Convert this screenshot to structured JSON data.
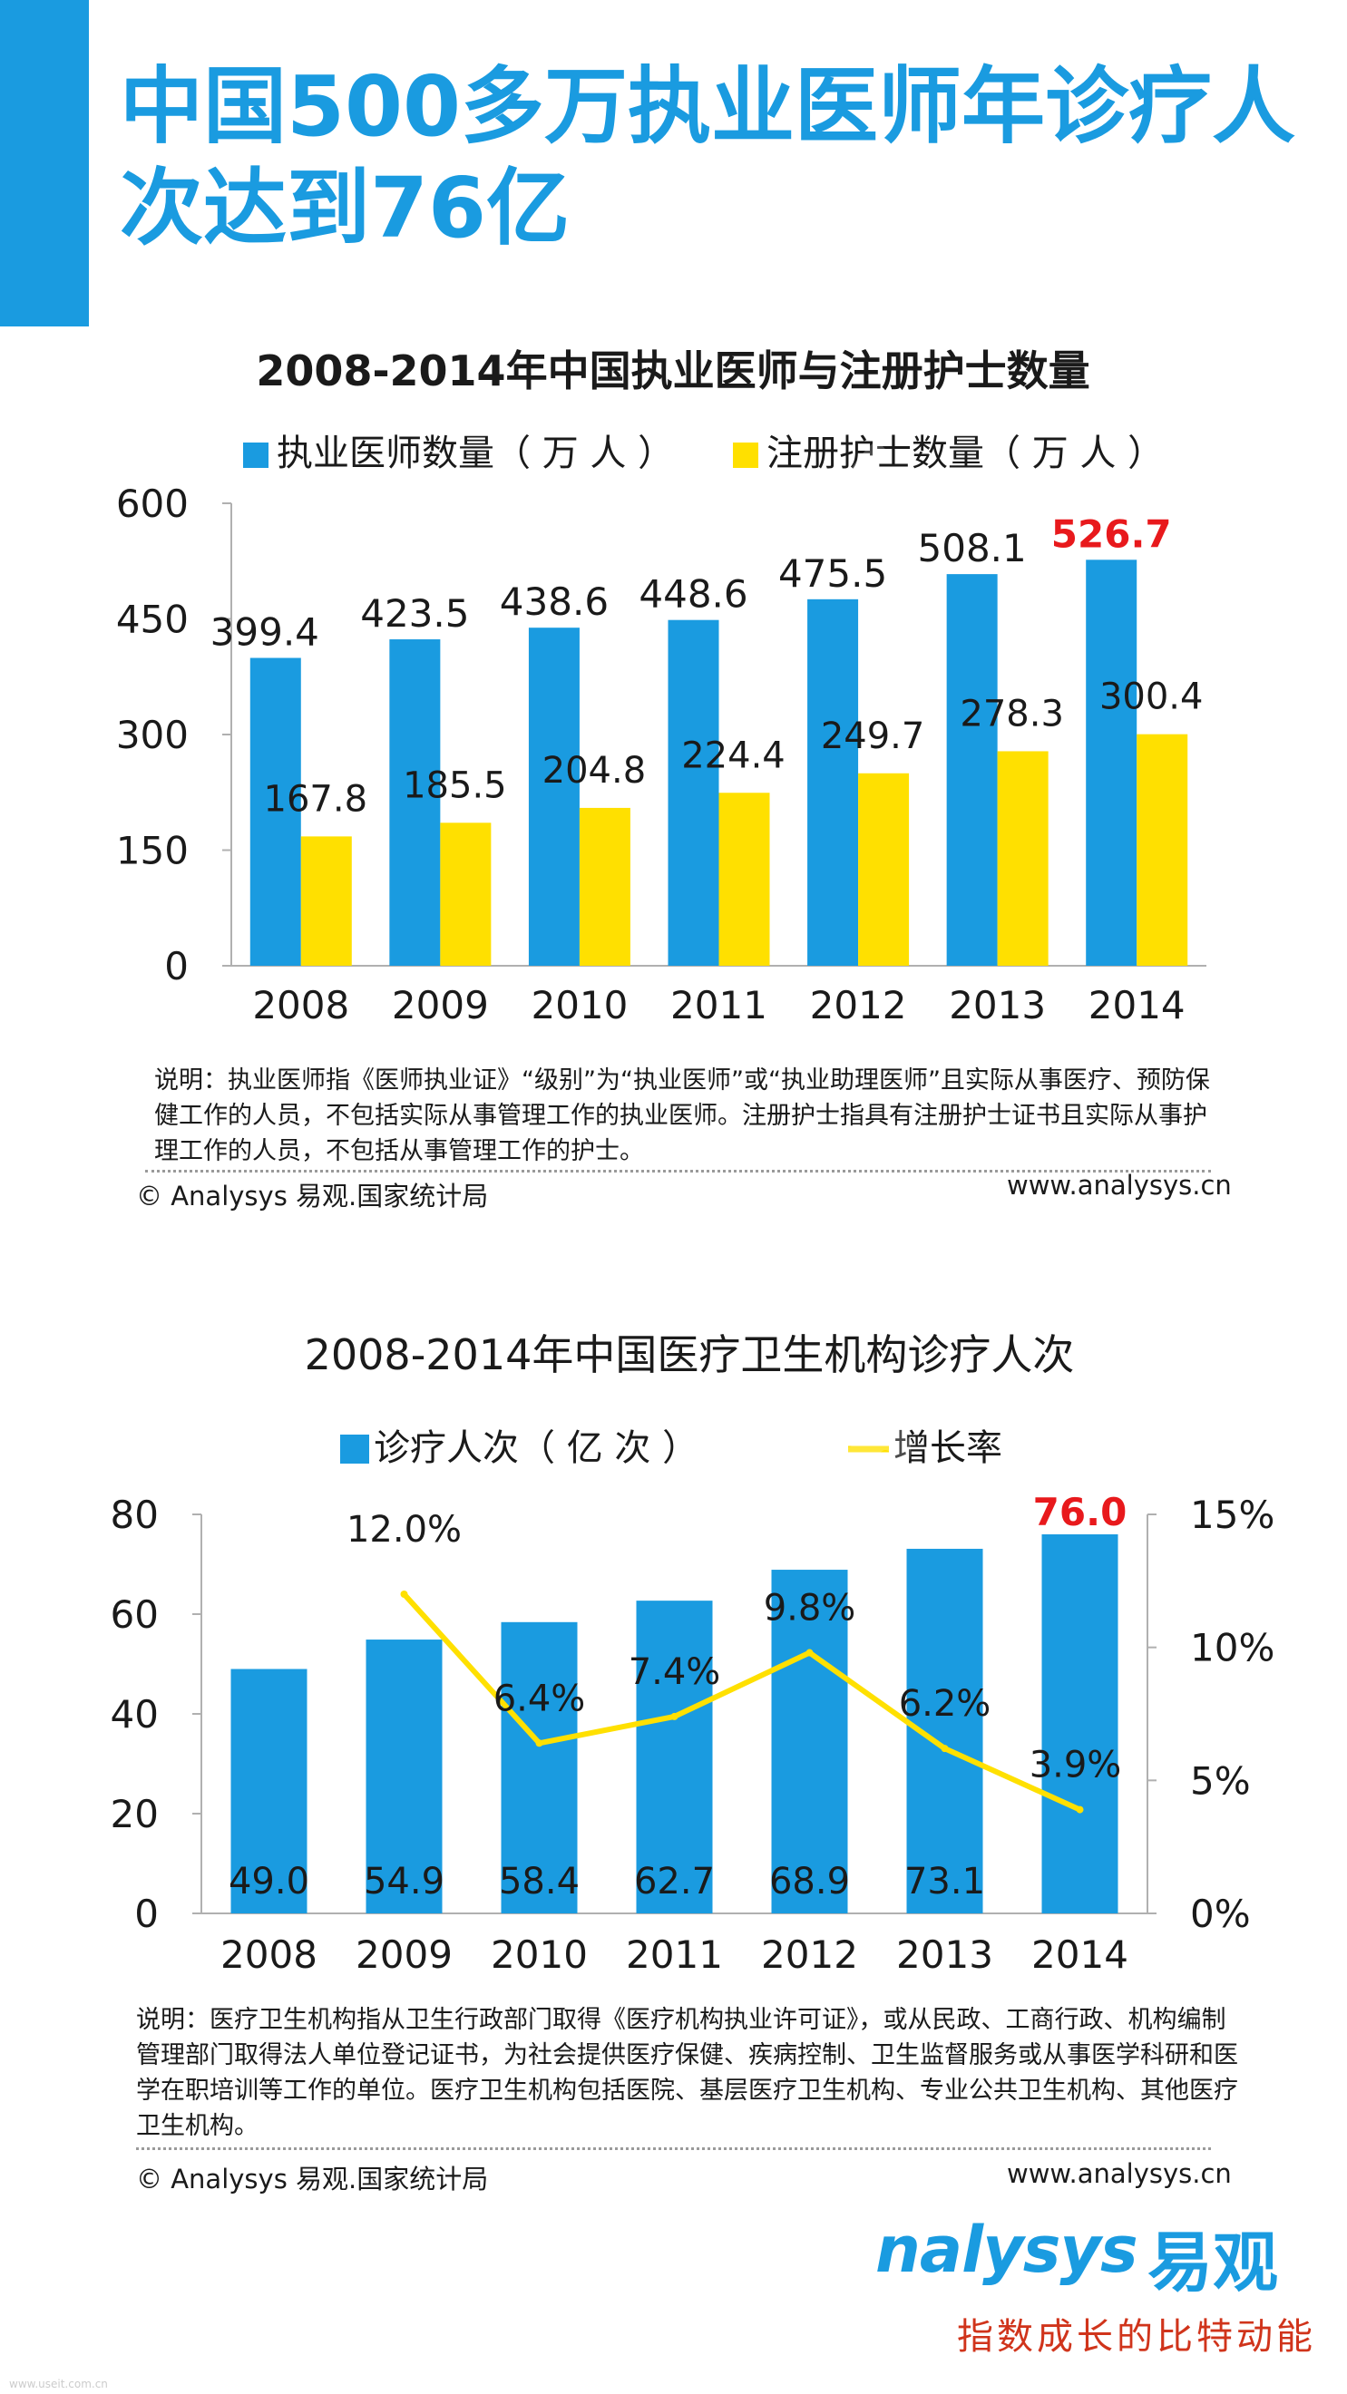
{
  "page_title": "中国500多万执业医师年诊疗人次达到76亿",
  "brand": {
    "name": "nalysys",
    "name_cn": "易观",
    "slogan": "指数成长的比特动能"
  },
  "corner_text": "www.useit.com.cn",
  "colors": {
    "blue": "#1a9be0",
    "yellow": "#ffe000",
    "highlight": "#e8191c"
  },
  "watermark": "Analysys",
  "chart_data": [
    {
      "type": "bar",
      "title": "2008-2014年中国执业医师与注册护士数量",
      "categories": [
        "2008",
        "2009",
        "2010",
        "2011",
        "2012",
        "2013",
        "2014"
      ],
      "series": [
        {
          "name": "执业医师数量（万人）",
          "legend": "执业医师数量（ 万 人 ）",
          "color": "#1a9be0",
          "values": [
            399.4,
            423.5,
            438.6,
            448.6,
            475.5,
            508.1,
            526.7
          ],
          "labels": [
            "399.4",
            "423.5",
            "438.6",
            "448.6",
            "475.5",
            "508.1",
            "526.7"
          ]
        },
        {
          "name": "注册护士数量（万人）",
          "legend": "注册护士数量（ 万 人 ）",
          "color": "#ffe000",
          "values": [
            167.8,
            185.5,
            204.8,
            224.4,
            249.7,
            278.3,
            300.4
          ],
          "labels": [
            "167.8",
            "185.5",
            "204.8",
            "224.4",
            "249.7",
            "278.3",
            "300.4"
          ]
        }
      ],
      "highlight_label": "526.7",
      "ylim": [
        0,
        600
      ],
      "yticks": [
        "0",
        "150",
        "300",
        "450",
        "600"
      ],
      "note": "说明：执业医师指《医师执业证》“级别”为“执业医师”或“执业助理医师”且实际从事医疗、预防保健工作的人员，不包括实际从事管理工作的执业医师。注册护士指具有注册护士证书且实际从事护理工作的人员，不包括从事管理工作的护士。",
      "source": "© Analysys 易观.国家统计局",
      "website": "www.analysys.cn"
    },
    {
      "type": "bar+line",
      "title": "2008-2014年中国医疗卫生机构诊疗人次",
      "categories": [
        "2008",
        "2009",
        "2010",
        "2011",
        "2012",
        "2013",
        "2014"
      ],
      "bar_series": {
        "name": "诊疗人次（亿次）",
        "legend": "诊疗人次（ 亿 次 ）",
        "color": "#1a9be0",
        "values": [
          49.0,
          54.9,
          58.4,
          62.7,
          68.9,
          73.1,
          76.0
        ],
        "labels": [
          "49.0",
          "54.9",
          "58.4",
          "62.7",
          "68.9",
          "73.1",
          "76.0"
        ]
      },
      "line_series": {
        "name": "增长率",
        "color": "#ffe000",
        "x": [
          "2009",
          "2010",
          "2011",
          "2012",
          "2013",
          "2014"
        ],
        "values": [
          12.0,
          6.4,
          7.4,
          9.8,
          6.2,
          3.9
        ],
        "labels": [
          "12.0%",
          "6.4%",
          "7.4%",
          "9.8%",
          "6.2%",
          "3.9%"
        ]
      },
      "highlight_label": "76.0",
      "ylim_left": [
        0,
        80
      ],
      "yticks_left": [
        "0",
        "20",
        "40",
        "60",
        "80"
      ],
      "ylim_right": [
        0,
        15
      ],
      "yticks_right": [
        "0%",
        "5%",
        "10%",
        "15%"
      ],
      "note": "说明：医疗卫生机构指从卫生行政部门取得《医疗机构执业许可证》，或从民政、工商行政、机构编制管理部门取得法人单位登记证书，为社会提供医疗保健、疾病控制、卫生监督服务或从事医学科研和医学在职培训等工作的单位。医疗卫生机构包括医院、基层医疗卫生机构、专业公共卫生机构、其他医疗卫生机构。",
      "source": "© Analysys 易观.国家统计局",
      "website": "www.analysys.cn"
    }
  ]
}
